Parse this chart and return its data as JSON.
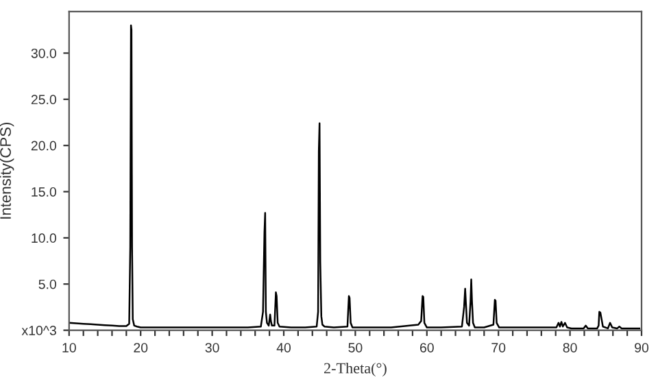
{
  "chart_data": {
    "type": "line",
    "xlabel": "2-Theta(°)",
    "ylabel": "Intensity(CPS)",
    "series": [
      {
        "color": "#000000",
        "x": [
          10,
          11,
          12,
          13,
          14,
          15,
          16,
          17,
          18,
          18.4,
          18.55,
          18.65,
          18.72,
          18.8,
          18.9,
          19.1,
          19.5,
          20,
          22,
          25,
          28,
          30,
          32,
          35,
          36.8,
          37.1,
          37.3,
          37.4,
          37.5,
          37.65,
          37.9,
          38.1,
          38.2,
          38.35,
          38.7,
          38.9,
          39.0,
          39.15,
          39.4,
          41,
          43,
          44.6,
          44.8,
          44.9,
          45.0,
          45.1,
          45.25,
          45.4,
          45.7,
          47,
          48.9,
          49.1,
          49.2,
          49.35,
          49.6,
          52,
          55,
          58.8,
          59.2,
          59.4,
          59.5,
          59.65,
          60,
          62,
          64.9,
          65.2,
          65.35,
          65.45,
          65.6,
          65.9,
          66.1,
          66.2,
          66.3,
          66.45,
          66.7,
          68,
          69.3,
          69.5,
          69.6,
          69.75,
          70.1,
          73,
          76,
          78.1,
          78.4,
          78.6,
          78.8,
          79.0,
          79.3,
          79.6,
          80.2,
          81.9,
          82.2,
          82.5,
          83.8,
          84.0,
          84.1,
          84.25,
          84.6,
          85.3,
          85.6,
          85.9,
          86.6,
          86.9,
          87.2,
          88,
          89.7
        ],
        "values": [
          0.8,
          0.75,
          0.7,
          0.65,
          0.6,
          0.55,
          0.5,
          0.45,
          0.45,
          0.7,
          9.0,
          33.0,
          32.5,
          9.0,
          1.2,
          0.5,
          0.4,
          0.3,
          0.3,
          0.3,
          0.3,
          0.3,
          0.3,
          0.3,
          0.4,
          2.0,
          10.6,
          12.7,
          2.0,
          0.8,
          0.5,
          1.7,
          1.0,
          0.5,
          0.5,
          4.1,
          3.7,
          0.8,
          0.4,
          0.3,
          0.3,
          0.4,
          2.0,
          19.4,
          22.4,
          7.4,
          1.5,
          0.6,
          0.4,
          0.3,
          0.4,
          3.7,
          3.5,
          0.8,
          0.3,
          0.3,
          0.3,
          0.6,
          1.0,
          3.7,
          3.6,
          0.8,
          0.3,
          0.3,
          0.4,
          2.5,
          4.5,
          3.0,
          0.8,
          0.5,
          3.1,
          5.5,
          3.2,
          0.8,
          0.3,
          0.3,
          0.6,
          3.3,
          3.2,
          0.8,
          0.3,
          0.3,
          0.3,
          0.3,
          0.8,
          0.4,
          0.9,
          0.4,
          0.8,
          0.3,
          0.2,
          0.2,
          0.5,
          0.2,
          0.2,
          0.5,
          2.0,
          1.9,
          0.4,
          0.2,
          0.8,
          0.3,
          0.2,
          0.4,
          0.2,
          0.2,
          0.2
        ]
      }
    ],
    "xlim": [
      10,
      90
    ],
    "ylim": [
      0,
      34.5
    ],
    "xticks": [
      10,
      {
        "value": 12,
        "label": null
      },
      {
        "value": 14,
        "label": null
      },
      {
        "value": 16,
        "label": null
      },
      {
        "value": 18,
        "label": null
      },
      20,
      {
        "value": 22,
        "label": null
      },
      {
        "value": 24,
        "label": null
      },
      {
        "value": 26,
        "label": null
      },
      {
        "value": 28,
        "label": null
      },
      30,
      {
        "value": 32,
        "label": null
      },
      {
        "value": 34,
        "label": null
      },
      {
        "value": 36,
        "label": null
      },
      {
        "value": 38,
        "label": null
      },
      40,
      {
        "value": 42,
        "label": null
      },
      {
        "value": 44,
        "label": null
      },
      {
        "value": 46,
        "label": null
      },
      {
        "value": 48,
        "label": null
      },
      50,
      {
        "value": 52,
        "label": null
      },
      {
        "value": 54,
        "label": null
      },
      {
        "value": 56,
        "label": null
      },
      {
        "value": 58,
        "label": null
      },
      60,
      {
        "value": 62,
        "label": null
      },
      {
        "value": 64,
        "label": null
      },
      {
        "value": 66,
        "label": null
      },
      {
        "value": 68,
        "label": null
      },
      70,
      {
        "value": 72,
        "label": null
      },
      {
        "value": 74,
        "label": null
      },
      {
        "value": 76,
        "label": null
      },
      {
        "value": 78,
        "label": null
      },
      80,
      {
        "value": 82,
        "label": null
      },
      {
        "value": 84,
        "label": null
      },
      {
        "value": 86,
        "label": null
      },
      {
        "value": 88,
        "label": null
      },
      90
    ],
    "yticks": [
      {
        "value": 0,
        "label": "x10^3"
      },
      {
        "value": 5,
        "label": "5.0"
      },
      {
        "value": 10,
        "label": "10.0"
      },
      {
        "value": 15,
        "label": "15.0"
      },
      {
        "value": 20,
        "label": "20.0"
      },
      {
        "value": 25,
        "label": "25.0"
      },
      {
        "value": 30,
        "label": "30.0"
      }
    ],
    "grid": false,
    "legend": false,
    "marker": "none",
    "line_style": "solid"
  }
}
